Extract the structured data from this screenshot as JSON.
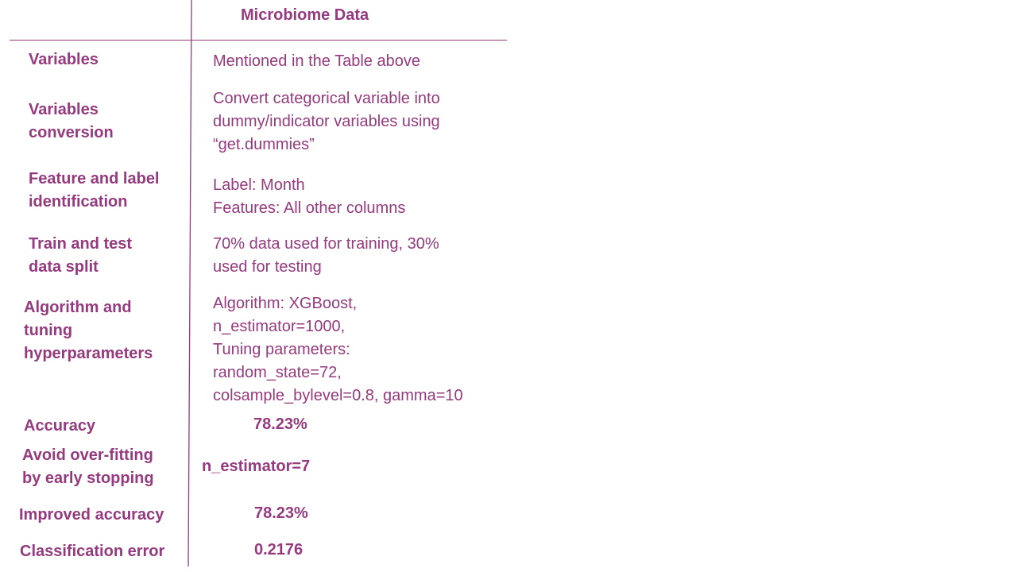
{
  "header": {
    "title": "Microbiome Data"
  },
  "rows": [
    {
      "label_lines": [
        "Variables"
      ],
      "value_lines": [
        "Mentioned in the Table above"
      ]
    },
    {
      "label_lines": [
        "Variables",
        "conversion"
      ],
      "value_lines": [
        "Convert categorical variable into",
        "dummy/indicator variables using",
        "“get.dummies”"
      ]
    },
    {
      "label_lines": [
        "Feature and label",
        "identification"
      ],
      "value_lines": [
        "Label: Month",
        "Features: All other columns"
      ]
    },
    {
      "label_lines": [
        "Train and test",
        "data split"
      ],
      "value_lines": [
        "70% data used for training, 30%",
        "used for testing"
      ]
    },
    {
      "label_lines": [
        "Algorithm and",
        "tuning",
        "hyperparameters"
      ],
      "value_lines": [
        "Algorithm: XGBoost,",
        "n_estimator=1000,",
        "Tuning parameters:",
        "random_state=72,",
        "colsample_bylevel=0.8, gamma=10"
      ]
    },
    {
      "label_lines": [
        "Accuracy"
      ],
      "value_lines": [
        "78.23%"
      ]
    },
    {
      "label_lines": [
        "Avoid over-fitting",
        "by early stopping"
      ],
      "value_lines": [
        "n_estimator=7"
      ]
    },
    {
      "label_lines": [
        "Improved accuracy"
      ],
      "value_lines": [
        "78.23%"
      ]
    },
    {
      "label_lines": [
        "Classification error"
      ],
      "value_lines": [
        "0.2176"
      ]
    }
  ]
}
